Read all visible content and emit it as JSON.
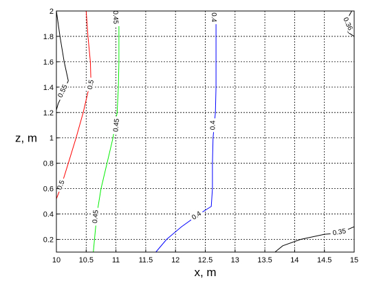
{
  "chart_data": {
    "type": "contour",
    "xlabel": "x, m",
    "ylabel": "z, m",
    "xlim": [
      10,
      15
    ],
    "ylim": [
      0.1,
      2
    ],
    "grid": true,
    "x_ticks": [
      {
        "value": 10,
        "label": "10"
      },
      {
        "value": 10.5,
        "label": "10.5"
      },
      {
        "value": 11,
        "label": "11"
      },
      {
        "value": 11.5,
        "label": "11.5"
      },
      {
        "value": 12,
        "label": "12"
      },
      {
        "value": 12.5,
        "label": "12.5"
      },
      {
        "value": 13,
        "label": "13"
      },
      {
        "value": 13.5,
        "label": "13.5"
      },
      {
        "value": 14,
        "label": "14"
      },
      {
        "value": 14.5,
        "label": "14.5"
      },
      {
        "value": 15,
        "label": "15"
      }
    ],
    "y_ticks": [
      {
        "value": 0.2,
        "label": "0.2"
      },
      {
        "value": 0.4,
        "label": "0.4"
      },
      {
        "value": 0.6,
        "label": "0.6"
      },
      {
        "value": 0.8,
        "label": "0.8"
      },
      {
        "value": 1.0,
        "label": "1"
      },
      {
        "value": 1.2,
        "label": "1.2"
      },
      {
        "value": 1.4,
        "label": "1.4"
      },
      {
        "value": 1.6,
        "label": "1.6"
      },
      {
        "value": 1.8,
        "label": "1.8"
      },
      {
        "value": 2.0,
        "label": "2"
      }
    ],
    "contours": [
      {
        "id": "contour-055",
        "level_label": "0.55",
        "color": "#000000",
        "points": [
          [
            10,
            2.0
          ],
          [
            10.06,
            1.8
          ],
          [
            10.13,
            1.6
          ],
          [
            10.2,
            1.45
          ],
          [
            10.1,
            1.34
          ],
          [
            10.03,
            1.27
          ],
          [
            10,
            1.22
          ]
        ],
        "labels": [
          {
            "text": "0.55",
            "x": 10.1,
            "y": 1.37,
            "angle": -65
          }
        ]
      },
      {
        "id": "contour-05",
        "level_label": "0.5",
        "color": "#ff0000",
        "points": [
          [
            10.5,
            2.0
          ],
          [
            10.53,
            1.8
          ],
          [
            10.57,
            1.6
          ],
          [
            10.58,
            1.45
          ],
          [
            10.55,
            1.4
          ],
          [
            10.45,
            1.2
          ],
          [
            10.33,
            1.0
          ],
          [
            10.2,
            0.8
          ],
          [
            10.1,
            0.65
          ],
          [
            10.05,
            0.58
          ],
          [
            10,
            0.52
          ]
        ],
        "labels": [
          {
            "text": "0.5",
            "x": 10.57,
            "y": 1.42,
            "angle": -80
          },
          {
            "text": "0.5",
            "x": 10.07,
            "y": 0.63,
            "angle": -70
          }
        ]
      },
      {
        "id": "contour-045",
        "level_label": "0.45",
        "color": "#00ee00",
        "points": [
          [
            11.05,
            2.0
          ],
          [
            11.05,
            1.8
          ],
          [
            11.05,
            1.6
          ],
          [
            11.04,
            1.4
          ],
          [
            11.02,
            1.2
          ],
          [
            10.95,
            1.0
          ],
          [
            10.85,
            0.8
          ],
          [
            10.75,
            0.6
          ],
          [
            10.68,
            0.4
          ],
          [
            10.64,
            0.2
          ],
          [
            10.62,
            0.1
          ]
        ],
        "labels": [
          {
            "text": "0.45",
            "x": 11.0,
            "y": 1.95,
            "angle": 88
          },
          {
            "text": "0.45",
            "x": 11.0,
            "y": 1.1,
            "angle": -85
          },
          {
            "text": "0.45",
            "x": 10.65,
            "y": 0.38,
            "angle": -85
          }
        ]
      },
      {
        "id": "contour-04",
        "level_label": "0.4",
        "color": "#0000ff",
        "points": [
          [
            12.68,
            2.0
          ],
          [
            12.68,
            1.8
          ],
          [
            12.68,
            1.6
          ],
          [
            12.68,
            1.4
          ],
          [
            12.67,
            1.2
          ],
          [
            12.63,
            1.0
          ],
          [
            12.62,
            0.8
          ],
          [
            12.62,
            0.6
          ],
          [
            12.6,
            0.46
          ],
          [
            12.4,
            0.4
          ],
          [
            12.1,
            0.3
          ],
          [
            11.85,
            0.2
          ],
          [
            11.67,
            0.1
          ]
        ],
        "labels": [
          {
            "text": "0.4",
            "x": 12.65,
            "y": 1.95,
            "angle": 90
          },
          {
            "text": "0.4",
            "x": 12.62,
            "y": 1.1,
            "angle": -90
          },
          {
            "text": "0.4",
            "x": 12.35,
            "y": 0.39,
            "angle": -35
          }
        ]
      },
      {
        "id": "contour-036",
        "level_label": "0.36",
        "color": "#000000",
        "points": [
          [
            14.96,
            2.0
          ],
          [
            14.9,
            1.95
          ],
          [
            14.88,
            1.9
          ],
          [
            14.9,
            1.83
          ],
          [
            15,
            1.8
          ]
        ],
        "labels": [
          {
            "text": "0.36",
            "x": 14.9,
            "y": 1.9,
            "angle": 65
          }
        ]
      },
      {
        "id": "contour-035",
        "level_label": "0.35",
        "color": "#000000",
        "points": [
          [
            13.67,
            0.1
          ],
          [
            13.8,
            0.15
          ],
          [
            14.1,
            0.2
          ],
          [
            14.5,
            0.24
          ],
          [
            14.75,
            0.25
          ],
          [
            15,
            0.3
          ]
        ],
        "labels": [
          {
            "text": "0.35",
            "x": 14.75,
            "y": 0.26,
            "angle": -10
          }
        ]
      }
    ]
  }
}
